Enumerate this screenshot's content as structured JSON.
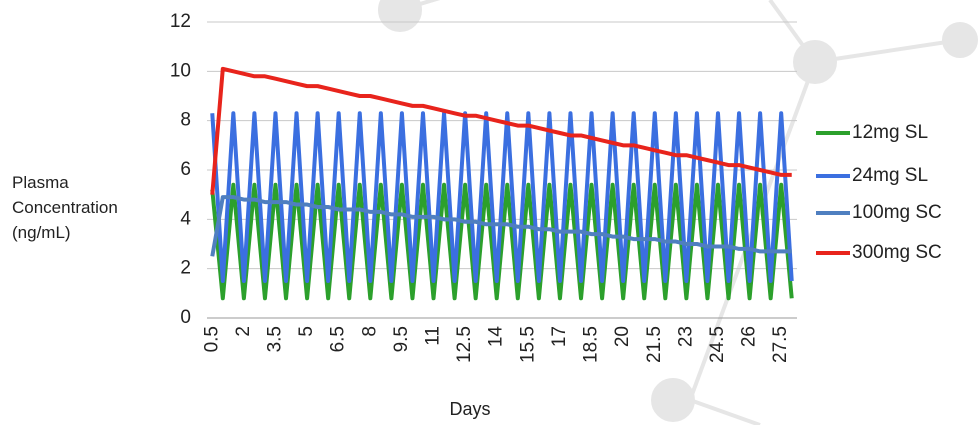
{
  "chart_data": {
    "type": "line",
    "xlabel": "Days",
    "ylabel": "Plasma Concentration (ng/mL)",
    "categories": [
      0.5,
      null,
      null,
      2,
      null,
      null,
      3.5,
      null,
      null,
      5,
      null,
      null,
      6.5,
      null,
      null,
      8,
      null,
      null,
      9.5,
      null,
      null,
      11,
      null,
      null,
      12.5,
      null,
      null,
      14,
      null,
      null,
      15.5,
      null,
      null,
      17,
      null,
      null,
      18.5,
      null,
      null,
      20,
      null,
      null,
      21.5,
      null,
      null,
      23,
      null,
      null,
      24.5,
      null,
      null,
      26,
      null,
      null,
      27.5,
      null
    ],
    "ylim": [
      0,
      12
    ],
    "yticks": [
      0,
      2,
      4,
      6,
      8,
      10,
      12
    ],
    "grid": true,
    "legend": "right",
    "series": [
      {
        "name": "12mg SL",
        "color": "#2ca02c",
        "values": [
          5.2,
          0.8,
          5.4,
          0.8,
          5.4,
          0.8,
          5.4,
          0.8,
          5.4,
          0.8,
          5.4,
          0.8,
          5.4,
          0.8,
          5.4,
          0.8,
          5.4,
          0.8,
          5.4,
          0.8,
          5.4,
          0.8,
          5.4,
          0.8,
          5.4,
          0.8,
          5.4,
          0.8,
          5.4,
          0.8,
          5.4,
          0.8,
          5.4,
          0.8,
          5.4,
          0.8,
          5.4,
          0.8,
          5.4,
          0.8,
          5.4,
          0.8,
          5.4,
          0.8,
          5.4,
          0.8,
          5.4,
          0.8,
          5.4,
          0.8,
          5.4,
          0.8,
          5.4,
          0.8,
          5.4,
          0.8
        ]
      },
      {
        "name": "24mg SL",
        "color": "#3b6fe0",
        "values": [
          8.3,
          1.5,
          8.3,
          1.5,
          8.3,
          1.5,
          8.3,
          1.5,
          8.3,
          1.5,
          8.3,
          1.5,
          8.3,
          1.5,
          8.3,
          1.5,
          8.3,
          1.5,
          8.3,
          1.5,
          8.3,
          1.5,
          8.3,
          1.5,
          8.3,
          1.5,
          8.3,
          1.5,
          8.3,
          1.5,
          8.3,
          1.5,
          8.3,
          1.5,
          8.3,
          1.5,
          8.3,
          1.5,
          8.3,
          1.5,
          8.3,
          1.5,
          8.3,
          1.5,
          8.3,
          1.5,
          8.3,
          1.5,
          8.3,
          1.5,
          8.3,
          1.5,
          8.3,
          1.5,
          8.3,
          1.5
        ]
      },
      {
        "name": "100mg SC",
        "color": "#4f7fc0",
        "values": [
          2.5,
          4.9,
          4.9,
          4.8,
          4.8,
          4.7,
          4.7,
          4.7,
          4.6,
          4.6,
          4.5,
          4.5,
          4.4,
          4.4,
          4.4,
          4.3,
          4.3,
          4.2,
          4.2,
          4.1,
          4.1,
          4.1,
          4.0,
          4.0,
          3.9,
          3.9,
          3.8,
          3.8,
          3.8,
          3.7,
          3.7,
          3.6,
          3.6,
          3.5,
          3.5,
          3.5,
          3.4,
          3.4,
          3.3,
          3.3,
          3.2,
          3.2,
          3.2,
          3.1,
          3.1,
          3.0,
          3.0,
          2.9,
          2.9,
          2.9,
          2.8,
          2.8,
          2.7,
          2.7,
          2.7,
          2.7
        ]
      },
      {
        "name": "300mg SC",
        "color": "#e8241c",
        "values": [
          5.0,
          10.1,
          10.0,
          9.9,
          9.8,
          9.8,
          9.7,
          9.6,
          9.5,
          9.4,
          9.4,
          9.3,
          9.2,
          9.1,
          9.0,
          9.0,
          8.9,
          8.8,
          8.7,
          8.6,
          8.6,
          8.5,
          8.4,
          8.3,
          8.2,
          8.2,
          8.1,
          8.0,
          7.9,
          7.8,
          7.8,
          7.7,
          7.6,
          7.5,
          7.4,
          7.4,
          7.3,
          7.2,
          7.1,
          7.0,
          7.0,
          6.9,
          6.8,
          6.7,
          6.6,
          6.6,
          6.5,
          6.4,
          6.3,
          6.2,
          6.2,
          6.1,
          6.0,
          5.9,
          5.8,
          5.8
        ]
      }
    ]
  }
}
